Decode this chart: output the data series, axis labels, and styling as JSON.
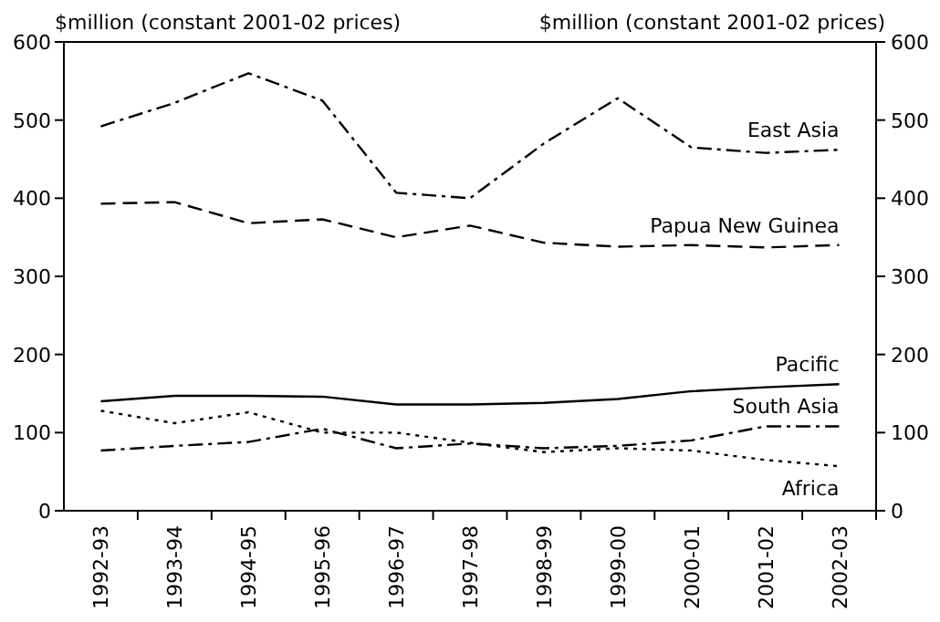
{
  "chart_data": {
    "type": "line",
    "ylabel": "$million (constant 2001-02 prices)",
    "y2label": "$million (constant 2001-02 prices)",
    "categories": [
      "1992-93",
      "1993-94",
      "1994-95",
      "1995-96",
      "1996-97",
      "1997-98",
      "1998-99",
      "1999-00",
      "2000-01",
      "2001-02",
      "2002-03"
    ],
    "ylim": [
      0,
      600
    ],
    "yticks": [
      0,
      100,
      200,
      300,
      400,
      500,
      600
    ],
    "y2lim": [
      0,
      600
    ],
    "y2ticks": [
      0,
      100,
      200,
      300,
      400,
      500,
      600
    ],
    "grid": false,
    "legend": false,
    "marker": "none",
    "series": [
      {
        "name": "East Asia",
        "color": "#000000",
        "line_style": "dashdot",
        "values": [
          492,
          522,
          560,
          525,
          407,
          400,
          470,
          528,
          465,
          458,
          462
        ]
      },
      {
        "name": "Papua New Guinea",
        "color": "#000000",
        "line_style": "dashed",
        "values": [
          393,
          395,
          368,
          373,
          350,
          365,
          343,
          338,
          340,
          337,
          340
        ]
      },
      {
        "name": "Pacific",
        "color": "#000000",
        "line_style": "solid",
        "values": [
          140,
          147,
          147,
          146,
          136,
          136,
          138,
          143,
          153,
          158,
          162
        ]
      },
      {
        "name": "South Asia",
        "color": "#000000",
        "line_style": "dashdot",
        "values": [
          77,
          83,
          88,
          105,
          80,
          86,
          80,
          83,
          90,
          108,
          108
        ]
      },
      {
        "name": "Africa",
        "color": "#000000",
        "line_style": "dotted",
        "values": [
          128,
          112,
          126,
          100,
          100,
          87,
          75,
          80,
          77,
          65,
          57
        ]
      }
    ]
  }
}
